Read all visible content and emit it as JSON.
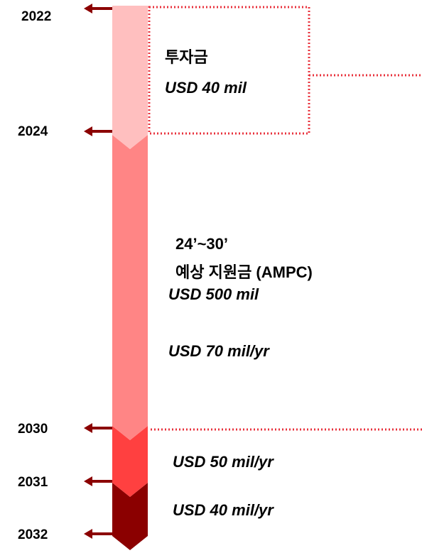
{
  "years": [
    "2022",
    "2024",
    "2030",
    "2031",
    "2032"
  ],
  "segments": [
    {
      "lines": [
        "투자금",
        "USD 40 mil"
      ]
    },
    {
      "lines": [
        "24’~30’",
        "예상 지원금 (AMPC)",
        "USD 500 mil",
        "USD 70 mil/yr"
      ]
    },
    {
      "lines": [
        "USD 50 mil/yr"
      ]
    },
    {
      "lines": [
        "USD 40 mil/yr"
      ]
    }
  ]
}
